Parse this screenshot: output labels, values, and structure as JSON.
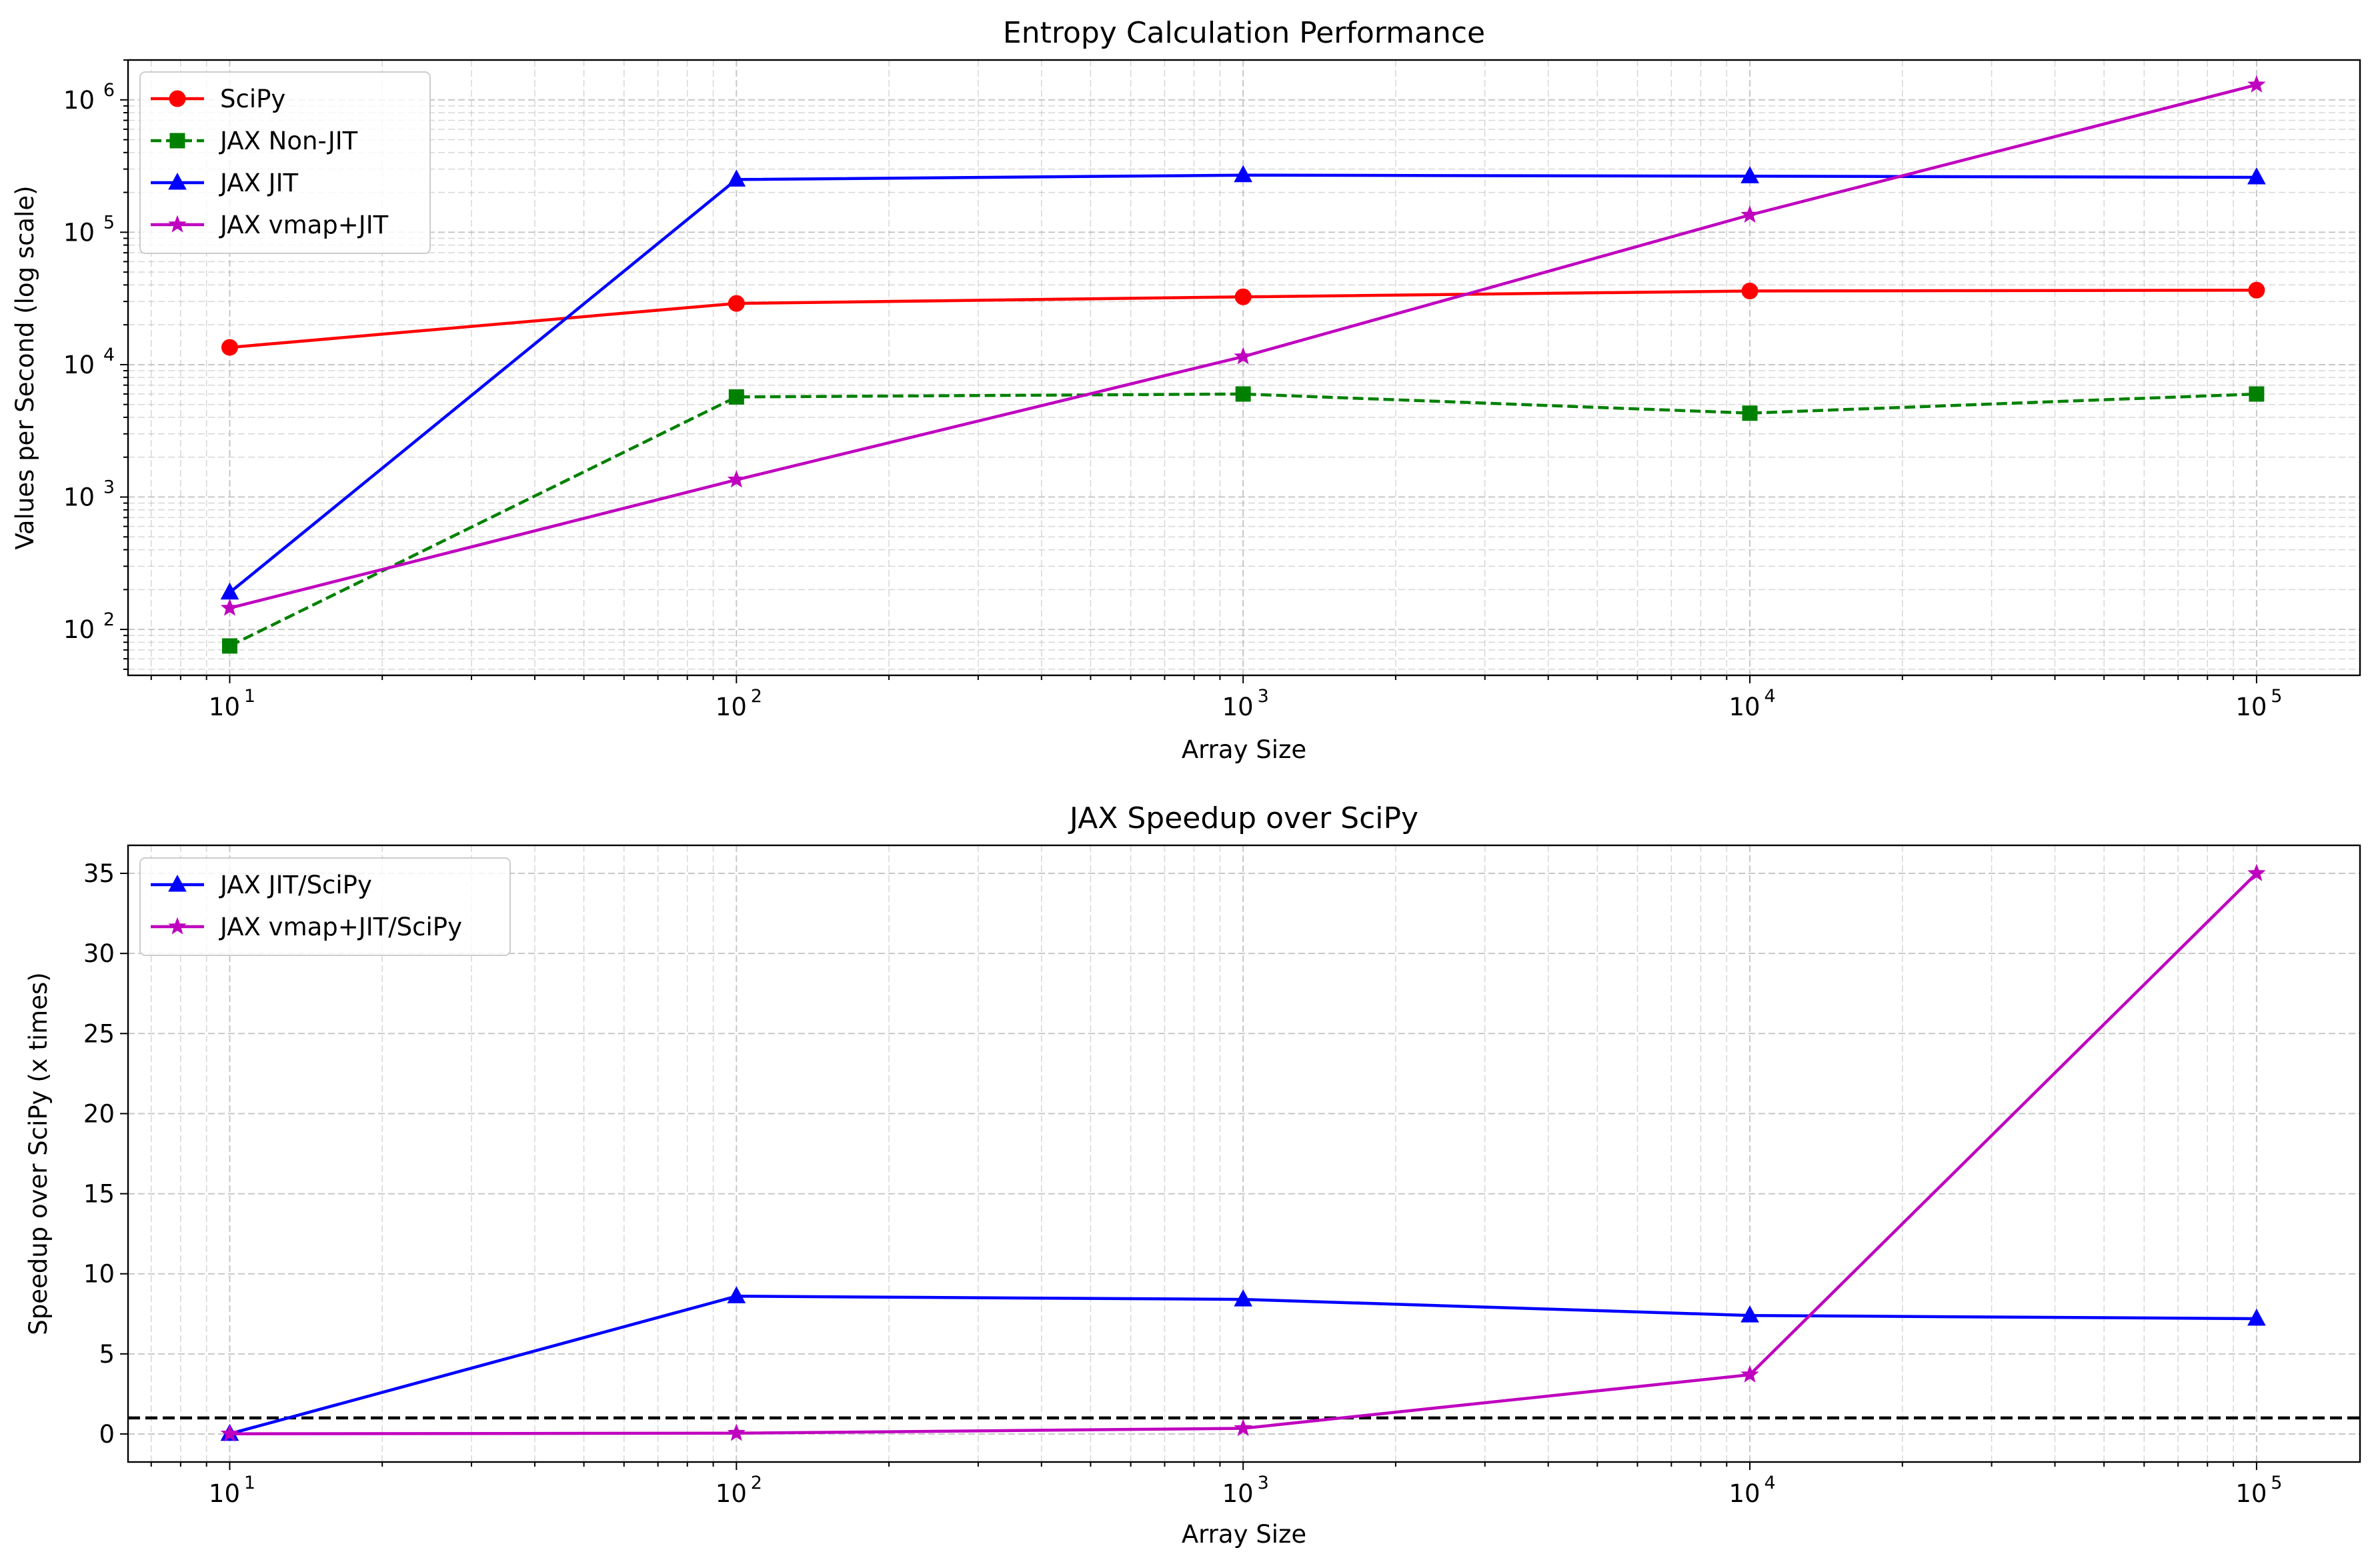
{
  "chart_data": [
    {
      "type": "line",
      "title": "Entropy Calculation Performance",
      "xlabel": "Array Size",
      "ylabel": "Values per Second (log scale)",
      "xscale": "log",
      "yscale": "log",
      "xlim": [
        6.3,
        160000
      ],
      "ylim": [
        45,
        2000000
      ],
      "grid": true,
      "legend_position": "top-left",
      "x": [
        10,
        100,
        1000,
        10000,
        100000
      ],
      "x_tick_labels": [
        "10",
        "10",
        "10",
        "10",
        "10"
      ],
      "x_tick_exponents": [
        "1",
        "2",
        "3",
        "4",
        "5"
      ],
      "y_ticks": [
        100,
        1000,
        10000,
        100000,
        1000000
      ],
      "y_tick_labels": [
        "10",
        "10",
        "10",
        "10",
        "10"
      ],
      "y_tick_exponents": [
        "2",
        "3",
        "4",
        "5",
        "6"
      ],
      "series": [
        {
          "name": "SciPy",
          "values": [
            13500,
            29000,
            32500,
            36000,
            36500
          ],
          "color": "#ff0000",
          "marker": "circle",
          "dash": "solid"
        },
        {
          "name": "JAX Non-JIT",
          "values": [
            75,
            5700,
            6000,
            4300,
            6000
          ],
          "color": "#008000",
          "marker": "square",
          "dash": "dashed"
        },
        {
          "name": "JAX JIT",
          "values": [
            190,
            250000,
            270000,
            265000,
            260000
          ],
          "color": "#0000ff",
          "marker": "triangle",
          "dash": "solid"
        },
        {
          "name": "JAX vmap+JIT",
          "values": [
            145,
            1350,
            11500,
            135000,
            1300000
          ],
          "color": "#bf00bf",
          "marker": "star",
          "dash": "solid"
        }
      ]
    },
    {
      "type": "line",
      "title": "JAX Speedup over SciPy",
      "xlabel": "Array Size",
      "ylabel": "Speedup over SciPy (x times)",
      "xscale": "log",
      "yscale": "linear",
      "xlim": [
        6.3,
        160000
      ],
      "ylim": [
        -1.75,
        36.75
      ],
      "grid": true,
      "legend_position": "top-left",
      "x": [
        10,
        100,
        1000,
        10000,
        100000
      ],
      "x_tick_labels": [
        "10",
        "10",
        "10",
        "10",
        "10"
      ],
      "x_tick_exponents": [
        "1",
        "2",
        "3",
        "4",
        "5"
      ],
      "y_ticks": [
        0,
        5,
        10,
        15,
        20,
        25,
        30,
        35
      ],
      "y_tick_labels": [
        "0",
        "5",
        "10",
        "15",
        "20",
        "25",
        "30",
        "35"
      ],
      "reference_line": {
        "y": 1,
        "color": "#000000",
        "dash": "dashed"
      },
      "series": [
        {
          "name": "JAX JIT/SciPy",
          "values": [
            0.01,
            8.6,
            8.4,
            7.4,
            7.2
          ],
          "color": "#0000ff",
          "marker": "triangle",
          "dash": "solid"
        },
        {
          "name": "JAX vmap+JIT/SciPy",
          "values": [
            0.01,
            0.05,
            0.35,
            3.7,
            35.0
          ],
          "color": "#bf00bf",
          "marker": "star",
          "dash": "solid"
        }
      ]
    }
  ]
}
